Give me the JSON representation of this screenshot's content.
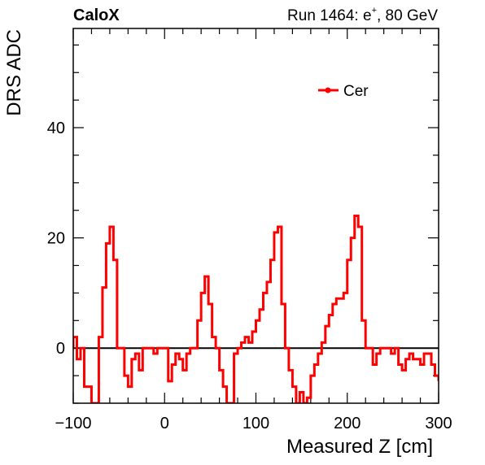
{
  "header": {
    "left_label": "CaloX",
    "right_label_main": "Run 1464: e",
    "right_label_sup": "+",
    "right_label_tail": ", 80 GeV"
  },
  "chart_data": {
    "type": "line",
    "title": "",
    "xlabel": "Measured Z [cm]",
    "ylabel": "DRS ADC",
    "xlim": [
      -100,
      300
    ],
    "ylim": [
      -10,
      58
    ],
    "x_ticks": [
      "−100",
      "0",
      "100",
      "200",
      "300"
    ],
    "x_tick_values": [
      -100,
      0,
      100,
      200,
      300
    ],
    "y_ticks": [
      "0",
      "20",
      "40"
    ],
    "y_tick_values": [
      0,
      20,
      40
    ],
    "legend": {
      "position": "top-right",
      "entries": [
        "Cer"
      ]
    },
    "zero_line": true,
    "series": [
      {
        "name": "Cer",
        "color": "#ff0000",
        "style": "step",
        "x_edges": [
          -100,
          -96,
          -92,
          -88,
          -84,
          -80,
          -76,
          -72,
          -68,
          -64,
          -60,
          -56,
          -52,
          -48,
          -44,
          -40,
          -36,
          -32,
          -28,
          -24,
          -20,
          -16,
          -12,
          -8,
          -4,
          0,
          4,
          8,
          12,
          16,
          20,
          24,
          28,
          32,
          36,
          40,
          44,
          48,
          52,
          56,
          60,
          64,
          68,
          72,
          76,
          80,
          84,
          88,
          92,
          96,
          100,
          104,
          108,
          112,
          116,
          120,
          124,
          128,
          132,
          136,
          140,
          144,
          148,
          152,
          156,
          160,
          164,
          168,
          172,
          176,
          180,
          184,
          188,
          192,
          196,
          200,
          204,
          208,
          212,
          216,
          220,
          224,
          228,
          232,
          236,
          240,
          244,
          248,
          252,
          256,
          260,
          264,
          268,
          272,
          276,
          280,
          284,
          288,
          292,
          296,
          300
        ],
        "values": [
          2,
          -2,
          0,
          -7,
          -7,
          -10,
          -10,
          2,
          11,
          19,
          22,
          16,
          0,
          0,
          -5,
          -7,
          -2,
          -1,
          -4,
          0,
          0,
          0,
          -1,
          0,
          0,
          0,
          -6,
          -3,
          -1,
          -2,
          -4,
          -1,
          0,
          0,
          5,
          10,
          13,
          8,
          2,
          0,
          -4,
          -7,
          -10,
          -10,
          -1,
          0,
          1,
          2,
          1,
          3,
          5,
          7,
          10,
          12,
          16,
          21,
          22,
          8,
          0,
          -4,
          -7,
          -10,
          -8,
          -10,
          -9,
          -5,
          -3,
          -1,
          1,
          4,
          6,
          8,
          9,
          9,
          10,
          16,
          20,
          24,
          22,
          5,
          0,
          0,
          -3,
          -1,
          0,
          0,
          0,
          -1,
          0,
          -3,
          -4,
          -2,
          -1,
          -2,
          -2,
          -3,
          -1,
          -1,
          -3,
          -5,
          -6
        ]
      }
    ]
  }
}
